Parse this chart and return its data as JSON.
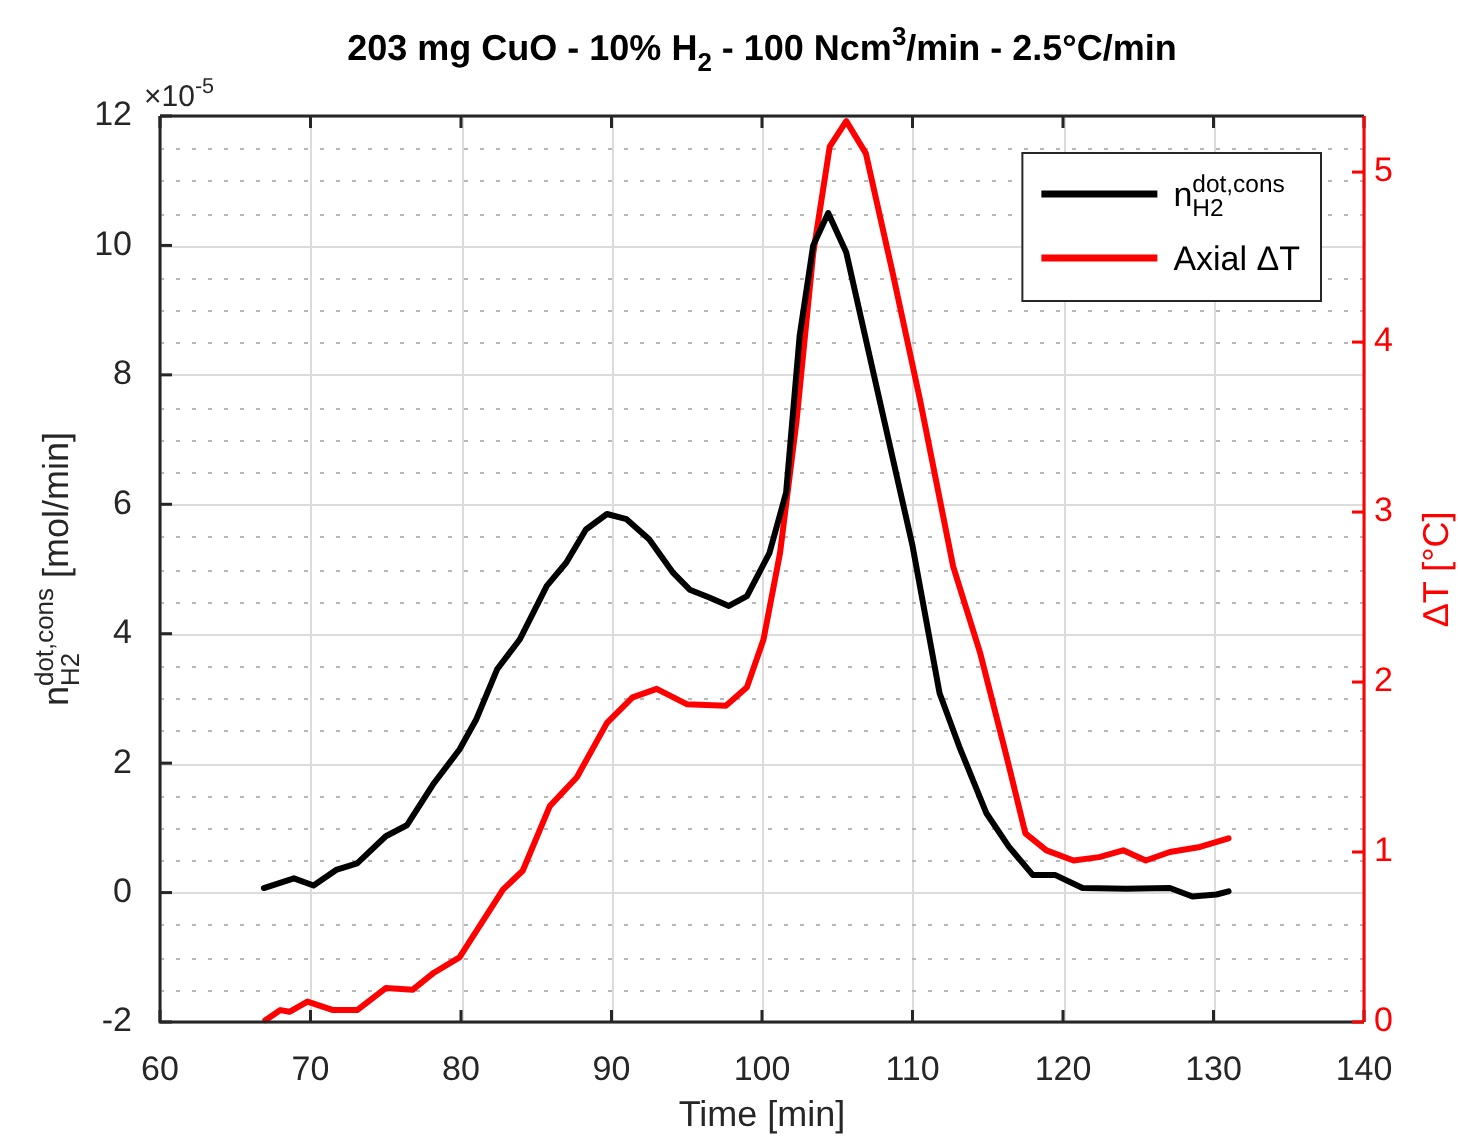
{
  "chart_data": {
    "type": "line",
    "title": "203 mg CuO - 10% H$_{2}$ - 100 Ncm$^{3}$/min - 2.5°C/min",
    "xlabel": "Time [min]",
    "ylabel": "n$_{H2}$$^{dot,cons}$ [mol/min]",
    "y2label": "ΔT [°C]",
    "annotations": [
      "×10$^{-5}$"
    ],
    "xlim": [
      60,
      140
    ],
    "xticks": [
      60,
      70,
      80,
      90,
      100,
      110,
      120,
      130,
      140
    ],
    "ylim": [
      -2,
      12
    ],
    "yticks": [
      -2,
      {
        "value": -1.5,
        "label": null
      },
      {
        "value": -1,
        "label": null
      },
      {
        "value": -0.5,
        "label": null
      },
      0,
      {
        "value": 0.5,
        "label": null
      },
      {
        "value": 1,
        "label": null
      },
      {
        "value": 1.5,
        "label": null
      },
      2,
      {
        "value": 2.5,
        "label": null
      },
      {
        "value": 3,
        "label": null
      },
      {
        "value": 3.5,
        "label": null
      },
      4,
      {
        "value": 4.5,
        "label": null
      },
      {
        "value": 5,
        "label": null
      },
      {
        "value": 5.5,
        "label": null
      },
      6,
      {
        "value": 6.5,
        "label": null
      },
      {
        "value": 7,
        "label": null
      },
      {
        "value": 7.5,
        "label": null
      },
      8,
      {
        "value": 8.5,
        "label": null
      },
      {
        "value": 9,
        "label": null
      },
      {
        "value": 9.5,
        "label": null
      },
      10,
      {
        "value": 10.5,
        "label": null
      },
      {
        "value": 11,
        "label": null
      },
      {
        "value": 11.5,
        "label": null
      },
      12
    ],
    "y2lim": [
      0,
      5.33
    ],
    "y2ticks": [
      0,
      1,
      2,
      3,
      4,
      5
    ],
    "grid": true,
    "legend": "top right",
    "marker": "none",
    "line_style": "solid",
    "series": [
      {
        "name": "n$_{H2}$$^{dot,cons}$",
        "color": "#000000",
        "x": [
          66.9,
          68.9,
          70.2,
          71.7,
          73.1,
          75.0,
          76.4,
          78.2,
          79.9,
          81.0,
          82.4,
          83.9,
          85.7,
          87.0,
          88.3,
          89.7,
          91.0,
          92.5,
          94.1,
          95.2,
          96.5,
          97.8,
          99.0,
          100.5,
          101.6,
          102.5,
          103.4,
          104.4,
          105.6,
          107.8,
          110.0,
          111.8,
          113.1,
          114.9,
          116.4,
          118.0,
          119.5,
          121.3,
          124.2,
          127.1,
          128.6,
          130.2,
          131.0
        ],
        "values": [
          0.07,
          0.22,
          0.11,
          0.35,
          0.45,
          0.87,
          1.04,
          1.69,
          2.21,
          2.67,
          3.45,
          3.91,
          4.74,
          5.1,
          5.61,
          5.85,
          5.77,
          5.46,
          4.94,
          4.68,
          4.56,
          4.43,
          4.58,
          5.25,
          6.18,
          8.6,
          10.0,
          10.5,
          9.89,
          7.62,
          5.36,
          3.08,
          2.26,
          1.23,
          0.71,
          0.27,
          0.27,
          0.07,
          0.06,
          0.07,
          -0.06,
          -0.03,
          0.02
        ]
      },
      {
        "name": "Axial ΔT",
        "color": "#ff0000",
        "axis": "y2",
        "x": [
          67.0,
          68.0,
          68.6,
          69.8,
          71.5,
          73.1,
          75.0,
          76.8,
          78.2,
          79.9,
          81.2,
          82.8,
          84.1,
          85.9,
          87.7,
          89.7,
          91.4,
          93.0,
          95.0,
          97.6,
          99.0,
          100.1,
          101.2,
          102.3,
          103.4,
          104.5,
          105.6,
          106.9,
          108.7,
          110.5,
          112.7,
          114.5,
          116.2,
          117.5,
          118.9,
          120.7,
          122.4,
          124.0,
          125.5,
          127.1,
          129.1,
          131.0
        ],
        "values": [
          0.01,
          0.07,
          0.06,
          0.12,
          0.07,
          0.07,
          0.2,
          0.19,
          0.29,
          0.38,
          0.56,
          0.78,
          0.89,
          1.27,
          1.44,
          1.76,
          1.91,
          1.96,
          1.87,
          1.86,
          1.97,
          2.25,
          2.76,
          3.54,
          4.52,
          5.15,
          5.3,
          5.11,
          4.4,
          3.66,
          2.68,
          2.17,
          1.58,
          1.11,
          1.01,
          0.95,
          0.97,
          1.01,
          0.95,
          1.0,
          1.03,
          1.08
        ]
      }
    ]
  }
}
